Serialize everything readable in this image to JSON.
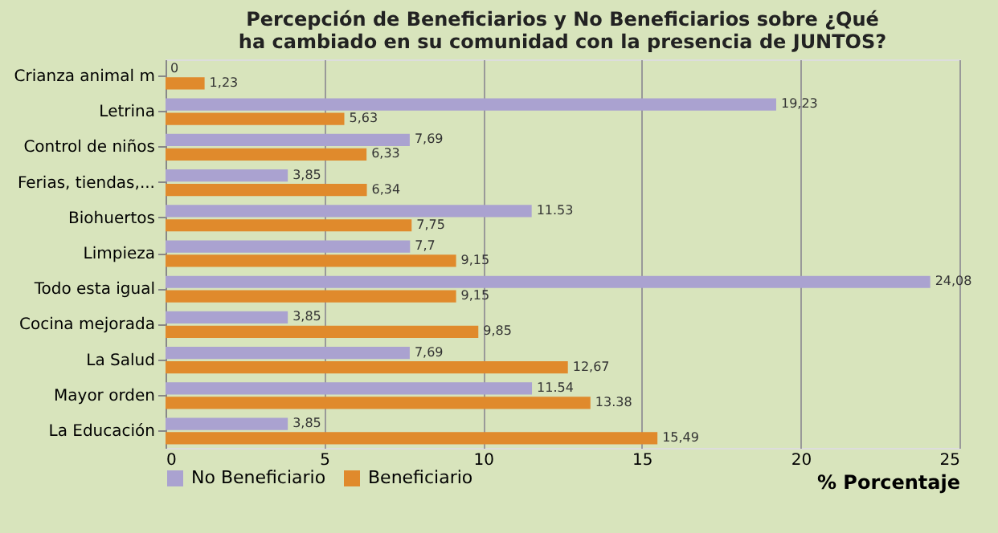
{
  "chart_data": {
    "type": "bar",
    "orientation": "horizontal",
    "title": "Percepción de Beneficiarios y No Beneficiarios sobre ¿Qué ha cambiado en su comunidad con la presencia de JUNTOS?",
    "categories": [
      "Crianza animal m",
      "Letrina",
      "Control de niños",
      "Ferias, tiendas,...",
      "Biohuertos",
      "Limpieza",
      "Todo esta igual",
      "Cocina mejorada",
      "La Salud",
      "Mayor orden",
      "La Educación"
    ],
    "series": [
      {
        "name": "No Beneficiario",
        "color": "#aaa2d0",
        "values": [
          0,
          19.23,
          7.69,
          3.85,
          11.53,
          7.7,
          24.08,
          3.85,
          7.69,
          11.54,
          3.85
        ],
        "value_labels": [
          "0",
          "19,23",
          "7,69",
          "3,85",
          "11.53",
          "7,7",
          "24,08",
          "3,85",
          "7,69",
          "11.54",
          "3,85"
        ]
      },
      {
        "name": "Beneficiario",
        "color": "#e08a2c",
        "values": [
          1.23,
          5.63,
          6.33,
          6.34,
          7.75,
          9.15,
          9.15,
          9.85,
          12.67,
          13.38,
          15.49
        ],
        "value_labels": [
          "1,23",
          "5,63",
          "6,33",
          "6,34",
          "7,75",
          "9,15",
          "9,15",
          "9,85",
          "12,67",
          "13.38",
          "15,49"
        ]
      }
    ],
    "xlabel": "% Porcentaje",
    "xlim": [
      0,
      25
    ],
    "xticks": [
      0,
      5,
      10,
      15,
      20,
      25
    ],
    "grid": "x",
    "legend": "bottom left"
  }
}
